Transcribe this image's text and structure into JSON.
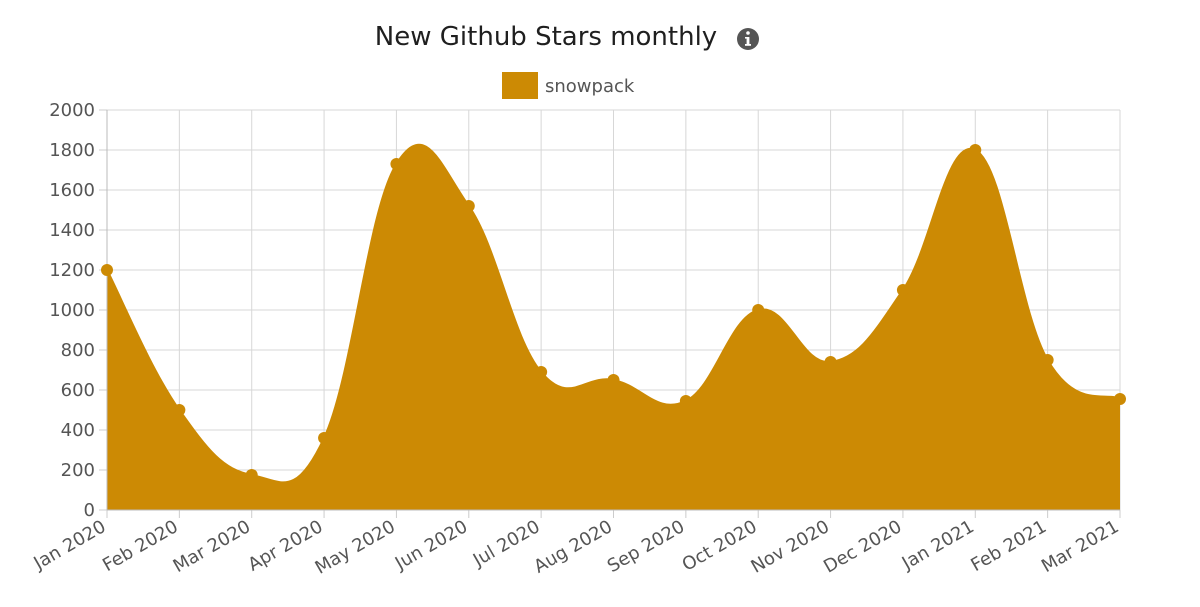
{
  "chart_data": {
    "type": "area",
    "title": "New Github Stars monthly",
    "info_icon": "info-icon",
    "legend_position": "top",
    "grid": true,
    "xlabel": "",
    "ylabel": "",
    "ylim": [
      0,
      2000
    ],
    "y_ticks": [
      0,
      200,
      400,
      600,
      800,
      1000,
      1200,
      1400,
      1600,
      1800,
      2000
    ],
    "categories": [
      "Jan 2020",
      "Feb 2020",
      "Mar 2020",
      "Apr 2020",
      "May 2020",
      "Jun 2020",
      "Jul 2020",
      "Aug 2020",
      "Sep 2020",
      "Oct 2020",
      "Nov 2020",
      "Dec 2020",
      "Jan 2021",
      "Feb 2021",
      "Mar 2021"
    ],
    "series": [
      {
        "name": "snowpack",
        "color": "#cc8a04",
        "values": [
          1200,
          500,
          175,
          360,
          1730,
          1520,
          690,
          650,
          545,
          1000,
          740,
          1100,
          1800,
          750,
          555
        ]
      }
    ]
  }
}
